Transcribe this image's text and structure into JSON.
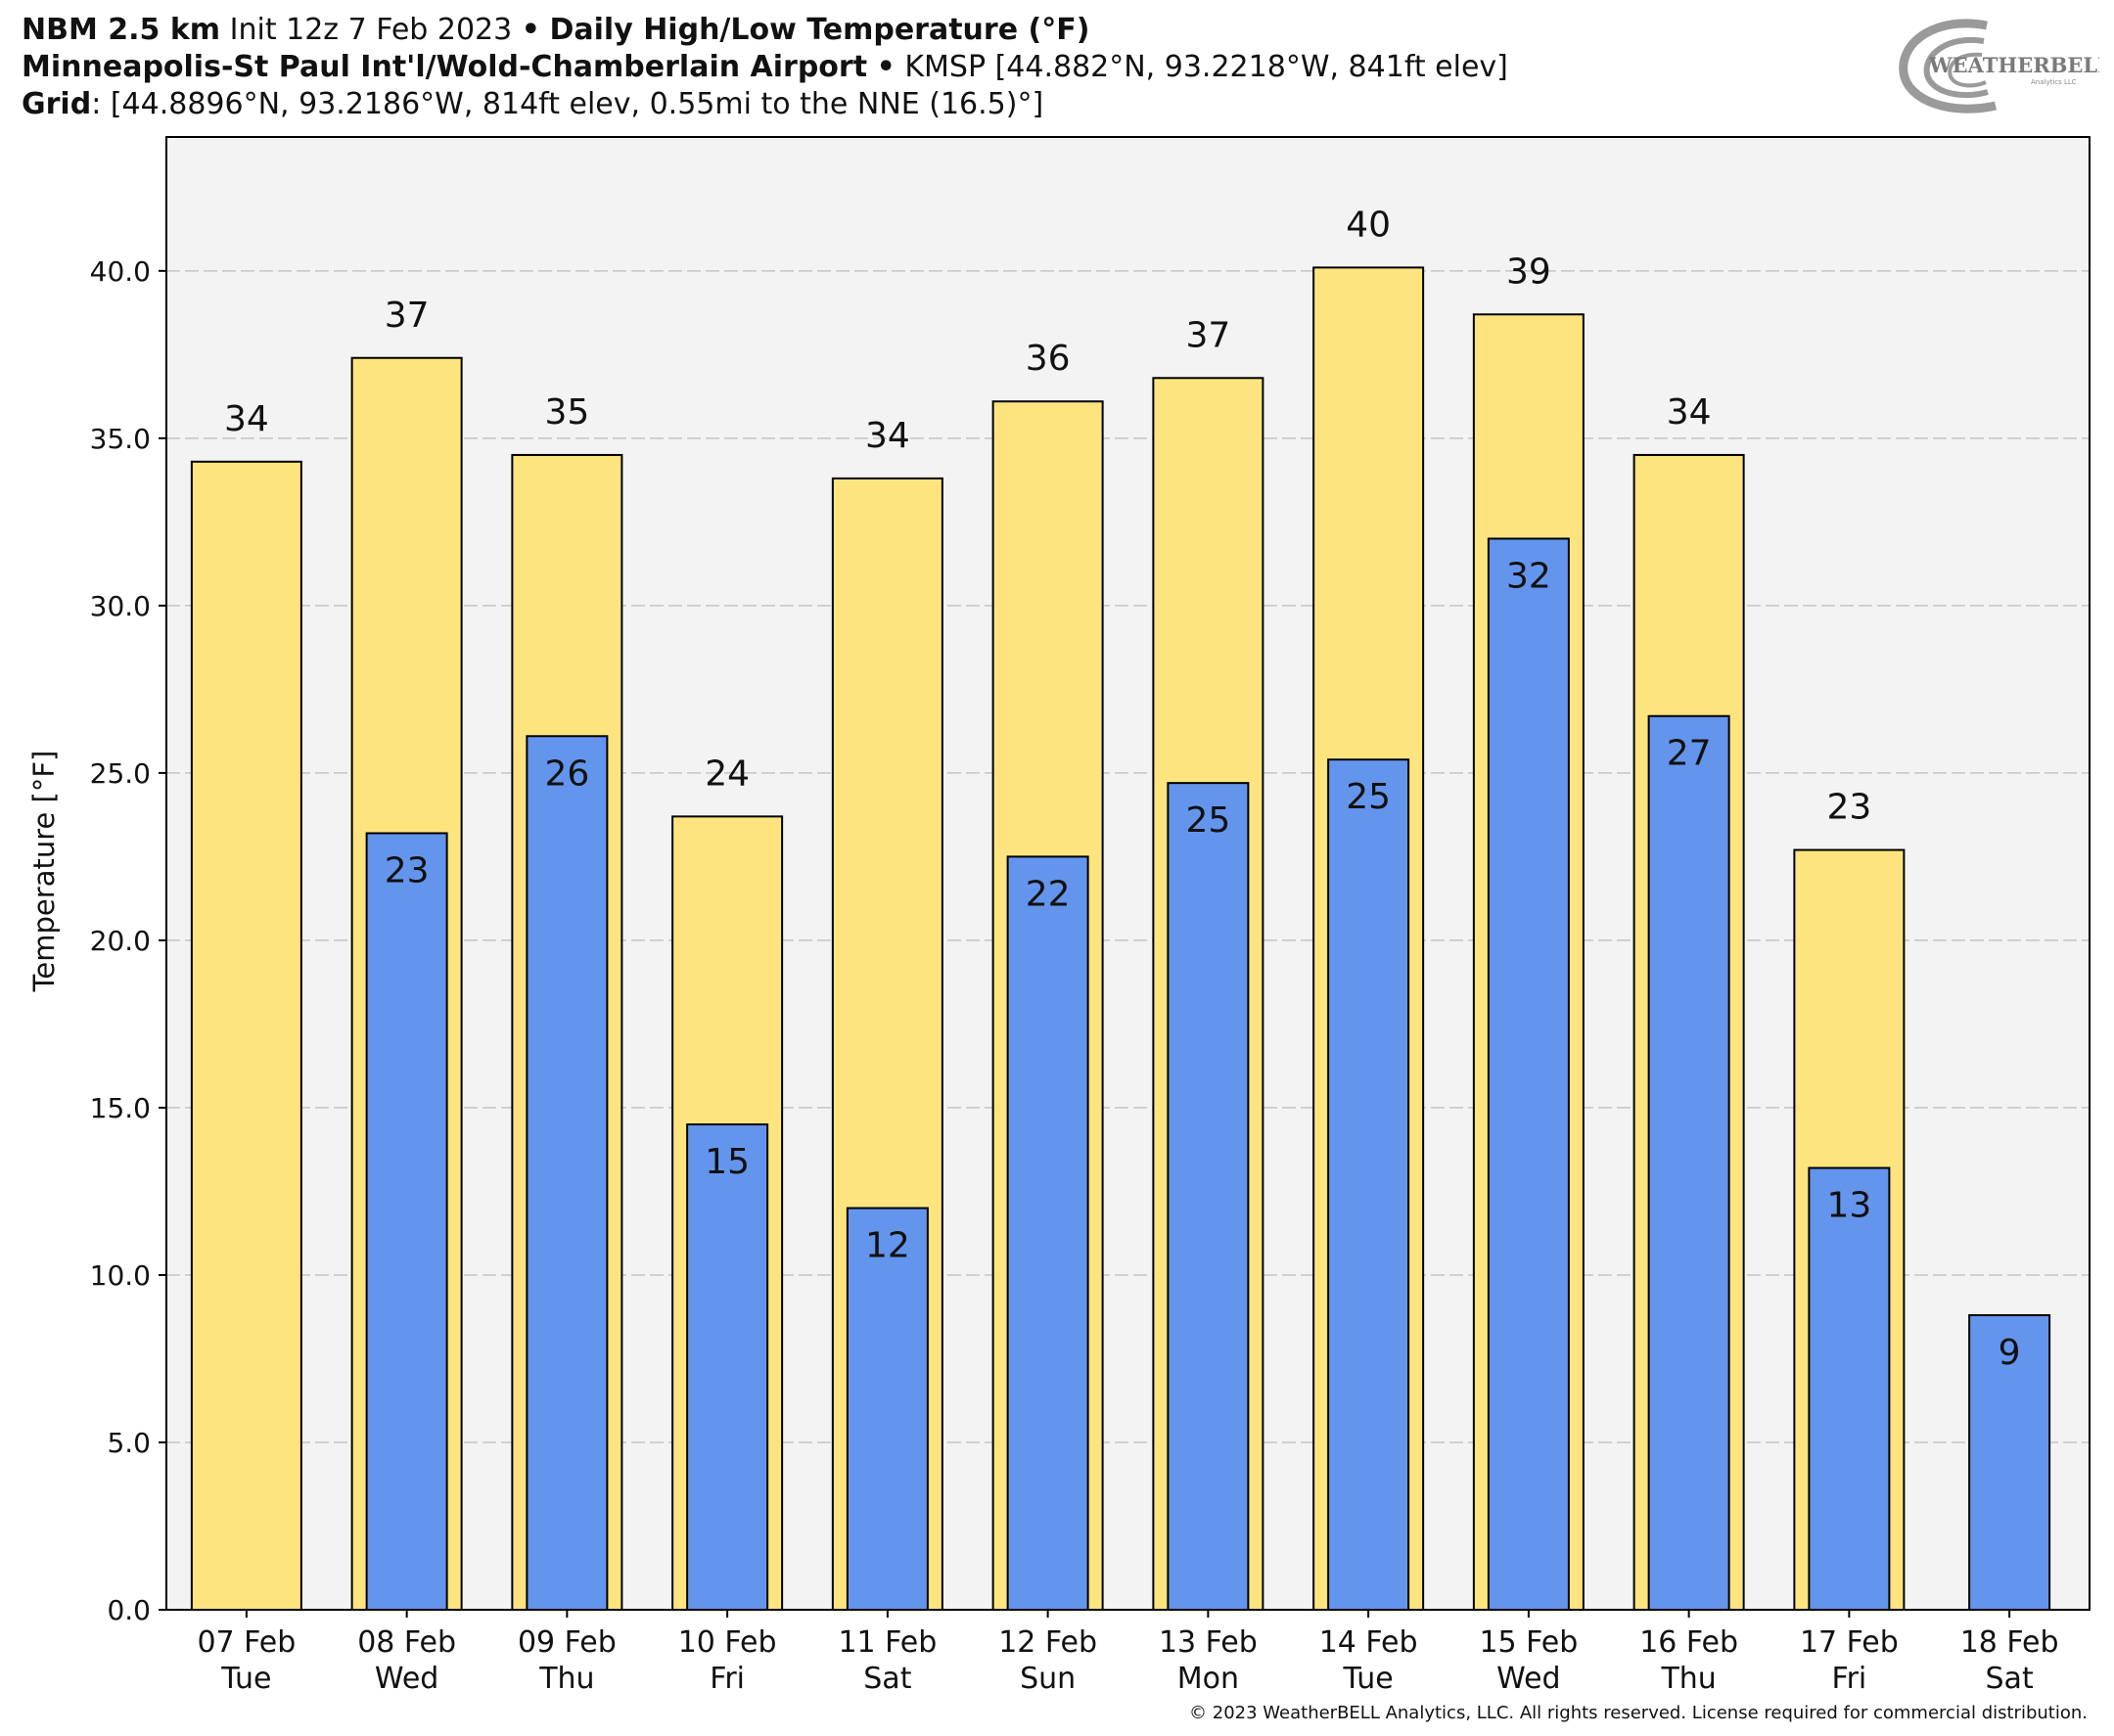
{
  "header": {
    "model_bold": "NBM 2.5 km",
    "init_text": "Init 12z 7 Feb 2023",
    "bullet": "•",
    "title_bold": "Daily High/Low Temperature (°F)",
    "station_bold": "Minneapolis-St Paul Int'l/Wold-Chamberlain Airport",
    "station_info": "KMSP [44.882°N, 93.2218°W, 841ft elev]",
    "grid_bold": "Grid",
    "grid_info": ": [44.8896°N, 93.2186°W, 814ft elev, 0.55mi to the NNE (16.5)°]"
  },
  "logo": {
    "text": "WEATHERBELL",
    "subtext": "Analytics LLC"
  },
  "copyright": "© 2023 WeatherBELL Analytics, LLC. All rights reserved. License required for commercial distribution.",
  "chart_data": {
    "type": "bar",
    "ylabel": "Temperature [°F]",
    "ylim": [
      0,
      44
    ],
    "yticks": [
      "0.0",
      "5.0",
      "10.0",
      "15.0",
      "20.0",
      "25.0",
      "30.0",
      "35.0",
      "40.0"
    ],
    "grid": true,
    "categories": [
      [
        "07 Feb",
        "Tue"
      ],
      [
        "08 Feb",
        "Wed"
      ],
      [
        "09 Feb",
        "Thu"
      ],
      [
        "10 Feb",
        "Fri"
      ],
      [
        "11 Feb",
        "Sat"
      ],
      [
        "12 Feb",
        "Sun"
      ],
      [
        "13 Feb",
        "Mon"
      ],
      [
        "14 Feb",
        "Tue"
      ],
      [
        "15 Feb",
        "Wed"
      ],
      [
        "16 Feb",
        "Thu"
      ],
      [
        "17 Feb",
        "Fri"
      ],
      [
        "18 Feb",
        "Sat"
      ]
    ],
    "series": [
      {
        "role": "high",
        "color": "#fde47f",
        "values": [
          34.3,
          37.4,
          34.5,
          23.7,
          33.8,
          36.1,
          36.8,
          40.1,
          38.7,
          34.5,
          22.7,
          null
        ],
        "labels": [
          "34",
          "37",
          "35",
          "24",
          "34",
          "36",
          "37",
          "40",
          "39",
          "34",
          "23",
          ""
        ]
      },
      {
        "role": "low",
        "color": "#6495ed",
        "values": [
          null,
          23.2,
          26.1,
          14.5,
          12.0,
          22.5,
          24.7,
          25.4,
          32.0,
          26.7,
          13.2,
          8.8
        ],
        "labels": [
          "",
          "23",
          "26",
          "15",
          "12",
          "22",
          "25",
          "25",
          "32",
          "27",
          "13",
          "9"
        ]
      }
    ],
    "colors": {
      "plot_bg": "#f3f3f3",
      "grid": "#c4c4c4"
    }
  }
}
